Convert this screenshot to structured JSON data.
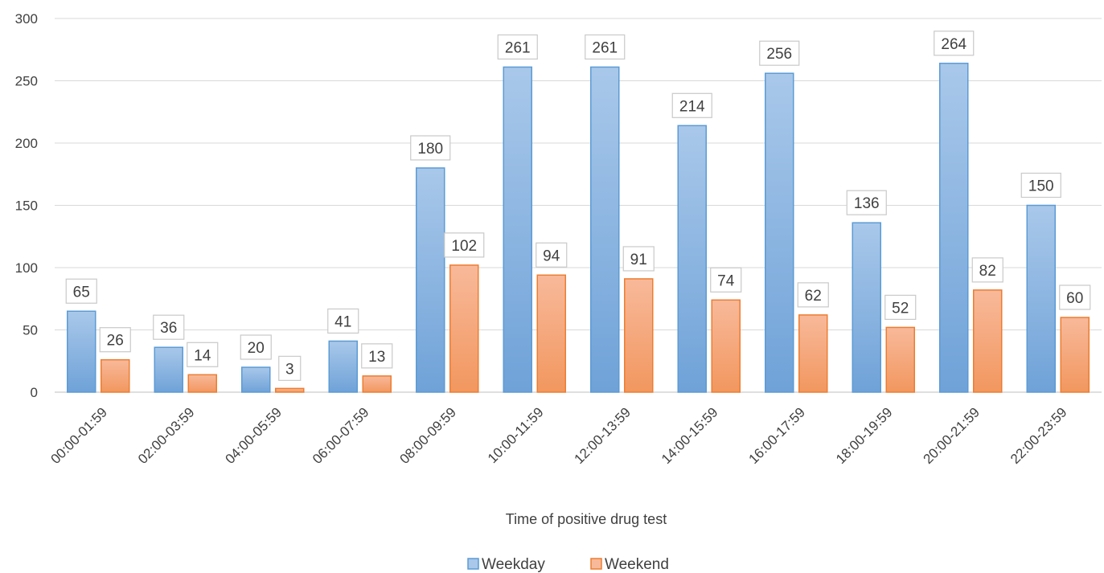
{
  "chart_data": {
    "type": "bar",
    "title": "",
    "xlabel": "Time of positive drug test",
    "ylabel": "",
    "ylim": [
      0,
      300
    ],
    "yticks": [
      0,
      50,
      100,
      150,
      200,
      250,
      300
    ],
    "grid": true,
    "legend_position": "bottom",
    "categories": [
      "00:00-01:59",
      "02:00-03:59",
      "04:00-05:59",
      "06:00-07:59",
      "08:00-09:59",
      "10:00-11:59",
      "12:00-13:59",
      "14:00-15:59",
      "16:00-17:59",
      "18:00-19:59",
      "20:00-21:59",
      "22:00-23:59"
    ],
    "series": [
      {
        "name": "Weekday",
        "values": [
          65,
          36,
          20,
          41,
          180,
          261,
          261,
          214,
          256,
          136,
          264,
          150
        ],
        "color": "#5B9BD5"
      },
      {
        "name": "Weekend",
        "values": [
          26,
          14,
          3,
          13,
          102,
          94,
          91,
          74,
          62,
          52,
          82,
          60
        ],
        "color": "#ED7D31"
      }
    ]
  }
}
